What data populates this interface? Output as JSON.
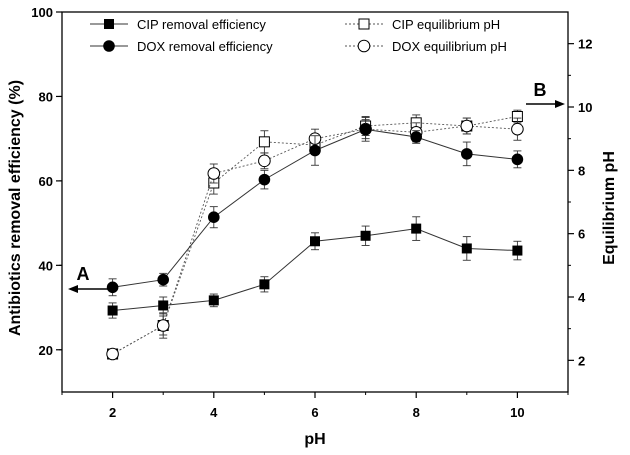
{
  "chart_data": {
    "type": "line",
    "x": [
      2,
      3,
      4,
      5,
      6,
      7,
      8,
      9,
      10
    ],
    "xlabel": "pH",
    "ylabel": "Antibiotics removal efficiency (%)",
    "y2label": "Equilibrium pH",
    "xlim": [
      1,
      11
    ],
    "ylim": [
      10,
      100
    ],
    "y2lim": [
      1,
      13
    ],
    "x_ticks": [
      "2",
      "4",
      "6",
      "8",
      "10"
    ],
    "y_ticks": [
      "20",
      "40",
      "60",
      "80",
      "100"
    ],
    "y2_ticks": [
      "2",
      "4",
      "6",
      "8",
      "10",
      "12"
    ],
    "grid": false,
    "legend_placement": "top",
    "series": [
      {
        "name": "CIP  removal efficiency",
        "axis": "left",
        "marker": "filled-square",
        "line": "solid",
        "values": [
          29.3,
          30.5,
          31.7,
          35.5,
          45.7,
          47.0,
          48.7,
          44.0,
          43.5
        ],
        "errors": [
          1.8,
          2.0,
          1.5,
          1.8,
          2.0,
          2.3,
          2.8,
          2.8,
          2.2
        ]
      },
      {
        "name": "DOX removal efficiency",
        "axis": "left",
        "marker": "filled-circle",
        "line": "solid",
        "values": [
          34.8,
          36.6,
          51.4,
          60.3,
          67.2,
          72.2,
          70.4,
          66.4,
          65.1
        ],
        "errors": [
          2.0,
          1.5,
          2.5,
          2.2,
          3.5,
          2.8,
          1.5,
          2.8,
          2.0
        ]
      },
      {
        "name": "CIP equilibrium pH",
        "axis": "right",
        "marker": "open-square",
        "line": "dotted",
        "values": [
          2.2,
          3.1,
          7.6,
          8.9,
          8.8,
          9.4,
          9.5,
          9.4,
          9.7
        ],
        "errors": [
          0.15,
          0.4,
          0.35,
          0.35,
          0.3,
          0.3,
          0.25,
          0.25,
          0.2
        ]
      },
      {
        "name": "DOX equilibrium pH",
        "axis": "right",
        "marker": "open-circle",
        "line": "dotted",
        "values": [
          2.2,
          3.1,
          7.9,
          8.3,
          9.0,
          9.3,
          9.2,
          9.4,
          9.3
        ],
        "errors": [
          0.1,
          0.3,
          0.3,
          0.25,
          0.3,
          0.3,
          0.3,
          0.25,
          0.35
        ]
      }
    ],
    "annotations": [
      {
        "text": "A",
        "arrow": "left",
        "points_to_axis": "left"
      },
      {
        "text": "B",
        "arrow": "right",
        "points_to_axis": "right"
      }
    ]
  }
}
